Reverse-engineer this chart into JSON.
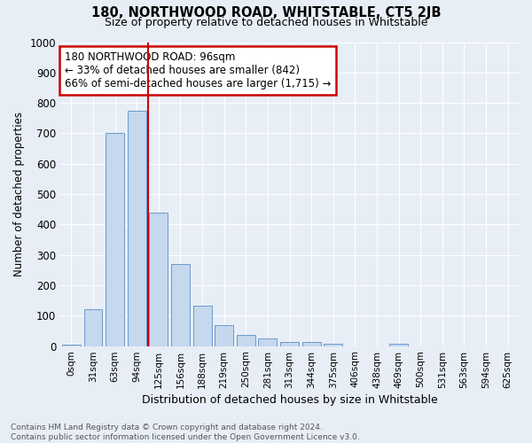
{
  "title1": "180, NORTHWOOD ROAD, WHITSTABLE, CT5 2JB",
  "title2": "Size of property relative to detached houses in Whitstable",
  "xlabel": "Distribution of detached houses by size in Whitstable",
  "ylabel": "Number of detached properties",
  "footer1": "Contains HM Land Registry data © Crown copyright and database right 2024.",
  "footer2": "Contains public sector information licensed under the Open Government Licence v3.0.",
  "bar_labels": [
    "0sqm",
    "31sqm",
    "63sqm",
    "94sqm",
    "125sqm",
    "156sqm",
    "188sqm",
    "219sqm",
    "250sqm",
    "281sqm",
    "313sqm",
    "344sqm",
    "375sqm",
    "406sqm",
    "438sqm",
    "469sqm",
    "500sqm",
    "531sqm",
    "563sqm",
    "594sqm",
    "625sqm"
  ],
  "bar_values": [
    5,
    122,
    700,
    775,
    440,
    270,
    133,
    68,
    37,
    25,
    13,
    13,
    7,
    0,
    0,
    8,
    0,
    0,
    0,
    0,
    0
  ],
  "bar_color": "#c5d8ee",
  "bar_edge_color": "#5b8ec4",
  "bg_color": "#e8eef6",
  "grid_color": "#ffffff",
  "vline_x": 3.5,
  "vline_color": "#cc0000",
  "annotation_text": "180 NORTHWOOD ROAD: 96sqm\n← 33% of detached houses are smaller (842)\n66% of semi-detached houses are larger (1,715) →",
  "annotation_box_color": "#cc0000",
  "ylim": [
    0,
    1000
  ],
  "yticks": [
    0,
    100,
    200,
    300,
    400,
    500,
    600,
    700,
    800,
    900,
    1000
  ]
}
